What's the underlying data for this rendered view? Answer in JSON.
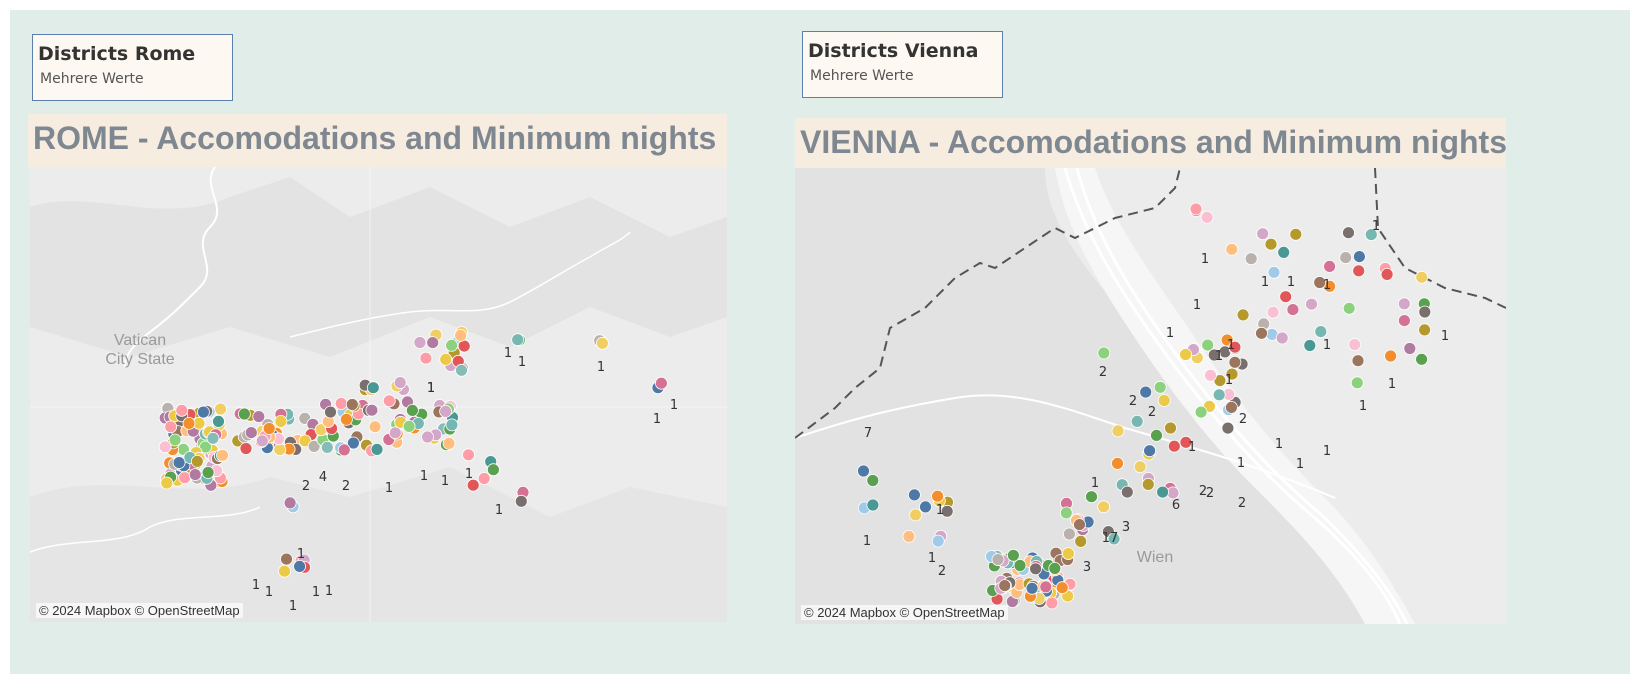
{
  "filters": {
    "rome": {
      "title": "Districts Rome",
      "value": "Mehrere Werte"
    },
    "vienna": {
      "title": "Districts Vienna",
      "value": "Mehrere Werte"
    }
  },
  "maps": {
    "rome": {
      "title": "ROME - Accomodations and Minimum nights",
      "place_labels": [
        "Vatican",
        "City State"
      ],
      "attribution": "© 2024 Mapbox © OpenStreetMap",
      "count_labels": [
        "1",
        "1",
        "1",
        "1",
        "1",
        "1",
        "2",
        "4",
        "2",
        "1",
        "1",
        "1",
        "1",
        "1",
        "1",
        "1",
        "1",
        "1",
        "1",
        "1",
        "1"
      ]
    },
    "vienna": {
      "title": "VIENNA - Accomodations and Minimum nights",
      "place_labels": [
        "Wien"
      ],
      "attribution": "© 2024 Mapbox © OpenStreetMap",
      "count_labels": [
        "1",
        "1",
        "1",
        "1",
        "1",
        "1",
        "1",
        "1",
        "1",
        "1",
        "2",
        "2",
        "2",
        "1",
        "1",
        "2",
        "1",
        "1",
        "1",
        "1",
        "1",
        "1",
        "6",
        "2",
        "2",
        "2",
        "1",
        "3",
        "17",
        "3",
        "7",
        "1",
        "1",
        "1",
        "2",
        "1"
      ]
    }
  },
  "colors": {
    "dashboard_bg": "#e1ede9",
    "title_bg": "#f6ece0",
    "title_text": "#7f8891",
    "map_bg": "#ececec",
    "filter_border": "#5b7fae",
    "dot_palette": [
      "#4e79a7",
      "#f28e2b",
      "#e15759",
      "#76b7b2",
      "#59a14f",
      "#edc948",
      "#b07aa1",
      "#ff9da7",
      "#9c755f",
      "#bab0ac",
      "#499894",
      "#86bcb6",
      "#a0cbe8",
      "#ffbe7d",
      "#8cd17d",
      "#b6992d",
      "#f1ce63",
      "#d37295",
      "#fabfd2",
      "#d4a6c8",
      "#79706e"
    ]
  }
}
